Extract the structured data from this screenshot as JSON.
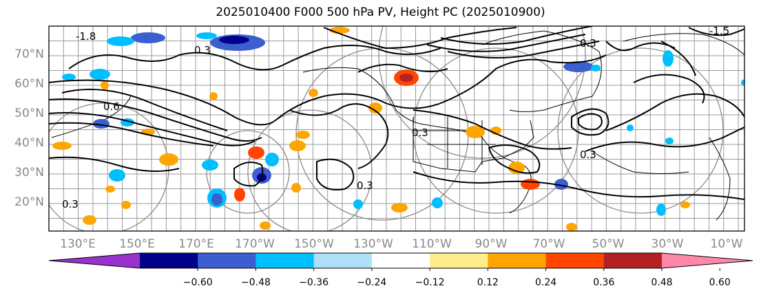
{
  "title": "2025010400 F000 500 hPa PV, Height PC (2025010900)",
  "lat_labels": [
    "70°N",
    "60°N",
    "50°N",
    "40°N",
    "30°N",
    "20°N"
  ],
  "lon_labels": [
    "130°E",
    "150°E",
    "170°E",
    "170°W",
    "150°W",
    "130°W",
    "110°W",
    "90°W",
    "70°W",
    "50°W",
    "30°W",
    "10°W"
  ],
  "contour_labels": [
    "-1.8",
    "0.3",
    "0.3",
    "0.3",
    "0.3",
    "0.3",
    "0.6",
    "-1.5",
    "0.3"
  ],
  "colorbar": {
    "colors": [
      "#9932cc",
      "#00008b",
      "#3b5fcf",
      "#00bfff",
      "#b0e0f8",
      "#ffffff",
      "#ffec8b",
      "#ffa500",
      "#ff4500",
      "#b22222",
      "#ff88aa"
    ],
    "tick_labels": [
      "−0.60",
      "−0.48",
      "−0.36",
      "−0.24",
      "−0.12",
      "0.12",
      "0.24",
      "0.36",
      "0.48",
      "0.60"
    ]
  }
}
